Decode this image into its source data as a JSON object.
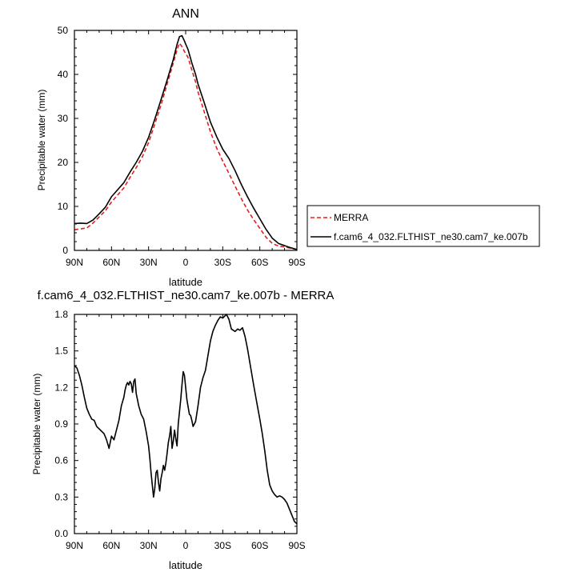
{
  "chart_data": [
    {
      "type": "line",
      "title": "ANN",
      "xlabel": "latitude",
      "ylabel": "Precipitable water (mm)",
      "xlim": [
        90,
        -90
      ],
      "ylim": [
        0,
        50
      ],
      "xticks": [
        90,
        60,
        30,
        0,
        -30,
        -60,
        -90
      ],
      "xtick_labels": [
        "90N",
        "60N",
        "30N",
        "0",
        "30S",
        "60S",
        "90S"
      ],
      "yticks": [
        0,
        10,
        20,
        30,
        40,
        50
      ],
      "ytick_labels": [
        "0",
        "10",
        "20",
        "30",
        "40",
        "50"
      ],
      "grid": false,
      "legend_position": "outside-right",
      "series": [
        {
          "name": "MERRA",
          "color": "#e3201b",
          "dash": "dashed",
          "x": [
            90,
            85,
            80,
            75,
            70,
            65,
            60,
            55,
            50,
            45,
            40,
            35,
            30,
            25,
            20,
            15,
            10,
            7,
            5,
            3,
            1,
            0,
            -2,
            -5,
            -8,
            -10,
            -15,
            -20,
            -25,
            -30,
            -35,
            -40,
            -45,
            -50,
            -55,
            -60,
            -65,
            -70,
            -75,
            -80,
            -85,
            -90
          ],
          "y": [
            4.7,
            4.9,
            5.1,
            6.2,
            7.6,
            9.0,
            11.0,
            12.6,
            14.2,
            16.6,
            18.8,
            21.3,
            24.5,
            28.7,
            33.0,
            37.8,
            42.6,
            45.6,
            47.1,
            46.3,
            45.2,
            44.8,
            43.8,
            41.0,
            38.3,
            36.0,
            31.5,
            27.0,
            23.3,
            20.3,
            17.5,
            14.6,
            11.8,
            9.2,
            7.0,
            5.0,
            3.0,
            1.6,
            1.0,
            0.8,
            0.5,
            0.2
          ]
        },
        {
          "name": "f.cam6_4_032.FLTHIST_ne30.cam7_ke.007b",
          "color": "#000000",
          "dash": "solid",
          "x": [
            90,
            85,
            80,
            75,
            70,
            65,
            60,
            55,
            50,
            45,
            40,
            35,
            30,
            25,
            20,
            15,
            10,
            7,
            5,
            3,
            1,
            0,
            -2,
            -5,
            -8,
            -10,
            -15,
            -20,
            -25,
            -30,
            -35,
            -40,
            -45,
            -50,
            -55,
            -60,
            -65,
            -70,
            -75,
            -80,
            -85,
            -90
          ],
          "y": [
            6.1,
            6.2,
            6.1,
            6.9,
            8.3,
            9.8,
            12.2,
            13.8,
            15.4,
            17.8,
            20.0,
            22.5,
            25.7,
            29.8,
            34.2,
            38.7,
            43.4,
            46.8,
            48.6,
            48.8,
            47.6,
            46.9,
            45.6,
            42.6,
            40.0,
            37.8,
            33.6,
            29.2,
            25.9,
            23.0,
            20.9,
            18.1,
            15.0,
            12.2,
            9.6,
            7.2,
            4.8,
            2.8,
            1.6,
            1.1,
            0.6,
            0.2
          ]
        }
      ]
    },
    {
      "type": "line",
      "title": "f.cam6_4_032.FLTHIST_ne30.cam7_ke.007b - MERRA",
      "xlabel": "latitude",
      "ylabel": "Precipitable water (mm)",
      "xlim": [
        90,
        -90
      ],
      "ylim": [
        0,
        1.8
      ],
      "xticks": [
        90,
        60,
        30,
        0,
        -30,
        -60,
        -90
      ],
      "xtick_labels": [
        "90N",
        "60N",
        "30N",
        "0",
        "30S",
        "60S",
        "90S"
      ],
      "yticks": [
        0,
        0.3,
        0.6,
        0.9,
        1.2,
        1.5,
        1.8
      ],
      "ytick_labels": [
        "0.0",
        "0.3",
        "0.6",
        "0.9",
        "1.2",
        "1.5",
        "1.8"
      ],
      "grid": false,
      "series": [
        {
          "color": "#000000",
          "dash": "solid",
          "x": [
            90,
            88,
            86,
            84,
            82,
            80,
            78,
            76,
            74,
            72,
            70,
            68,
            66,
            64,
            62,
            60,
            58,
            56,
            54,
            52,
            50,
            49,
            48,
            47,
            46,
            45,
            44,
            43,
            42,
            41,
            40,
            38,
            36,
            34,
            32,
            30,
            29,
            28,
            27,
            26,
            25,
            24,
            23,
            22,
            21,
            20,
            19,
            18,
            17,
            16,
            15,
            14,
            13,
            12,
            11,
            10,
            9,
            8,
            7,
            6,
            5,
            4,
            3,
            2,
            1,
            0,
            -1,
            -2,
            -3,
            -4,
            -5,
            -6,
            -8,
            -10,
            -12,
            -14,
            -16,
            -18,
            -20,
            -22,
            -24,
            -26,
            -28,
            -30,
            -32,
            -33,
            -35,
            -37,
            -40,
            -42,
            -44,
            -46,
            -48,
            -50,
            -52,
            -55,
            -58,
            -60,
            -62,
            -64,
            -66,
            -68,
            -70,
            -72,
            -74,
            -76,
            -78,
            -80,
            -82,
            -84,
            -86,
            -88,
            -90
          ],
          "y": [
            1.38,
            1.36,
            1.3,
            1.22,
            1.12,
            1.03,
            0.98,
            0.94,
            0.93,
            0.88,
            0.86,
            0.84,
            0.82,
            0.77,
            0.7,
            0.8,
            0.77,
            0.85,
            0.93,
            1.05,
            1.12,
            1.18,
            1.22,
            1.24,
            1.22,
            1.25,
            1.23,
            1.16,
            1.25,
            1.27,
            1.15,
            1.05,
            0.98,
            0.94,
            0.84,
            0.72,
            0.62,
            0.5,
            0.4,
            0.3,
            0.37,
            0.5,
            0.52,
            0.42,
            0.35,
            0.45,
            0.5,
            0.56,
            0.52,
            0.58,
            0.66,
            0.75,
            0.8,
            0.88,
            0.7,
            0.76,
            0.85,
            0.78,
            0.72,
            0.9,
            1.0,
            1.1,
            1.22,
            1.33,
            1.3,
            1.2,
            1.1,
            1.04,
            0.98,
            0.97,
            0.93,
            0.88,
            0.92,
            1.05,
            1.2,
            1.28,
            1.34,
            1.46,
            1.58,
            1.66,
            1.71,
            1.75,
            1.78,
            1.77,
            1.79,
            1.8,
            1.76,
            1.68,
            1.66,
            1.68,
            1.67,
            1.69,
            1.62,
            1.52,
            1.4,
            1.22,
            1.05,
            0.94,
            0.82,
            0.68,
            0.52,
            0.4,
            0.35,
            0.32,
            0.3,
            0.31,
            0.3,
            0.28,
            0.25,
            0.2,
            0.15,
            0.1,
            0.08
          ]
        }
      ]
    }
  ]
}
